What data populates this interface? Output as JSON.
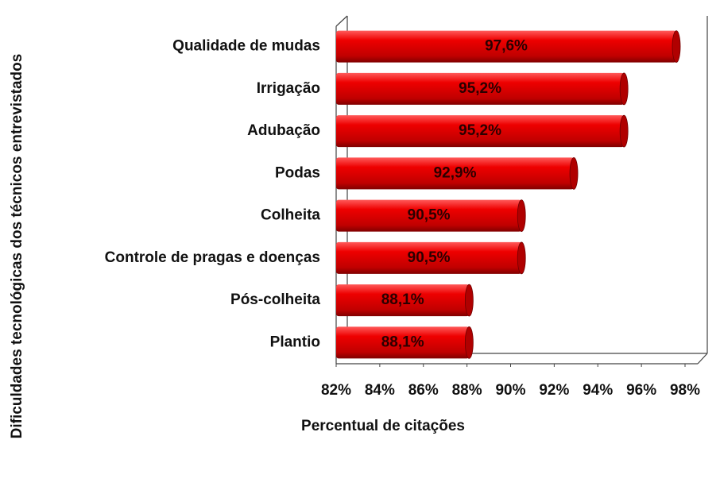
{
  "chart_data": {
    "type": "bar",
    "orientation": "horizontal",
    "x_label": "Percentual de citações",
    "y_label": "Dificuldades tecnológicas dos técnicos entrevistados",
    "categories": [
      "Qualidade de mudas",
      "Irrigação",
      "Adubação",
      "Podas",
      "Colheita",
      "Controle de pragas e doenças",
      "Pós-colheita",
      "Plantio"
    ],
    "values": [
      97.6,
      95.2,
      95.2,
      92.9,
      90.5,
      90.5,
      88.1,
      88.1
    ],
    "value_labels": [
      "97,6%",
      "95,2%",
      "95,2%",
      "92,9%",
      "90,5%",
      "90,5%",
      "88,1%",
      "88,1%"
    ],
    "color": "#e00000",
    "xlim": [
      82,
      98
    ],
    "xticks": [
      {
        "value": 82,
        "label": "82%"
      },
      {
        "value": 84,
        "label": "84%"
      },
      {
        "value": 86,
        "label": "86%"
      },
      {
        "value": 88,
        "label": "88%"
      },
      {
        "value": 90,
        "label": "90%"
      },
      {
        "value": 92,
        "label": "92%"
      },
      {
        "value": 94,
        "label": "94%"
      },
      {
        "value": 96,
        "label": "96%"
      },
      {
        "value": 98,
        "label": "98%"
      }
    ]
  }
}
